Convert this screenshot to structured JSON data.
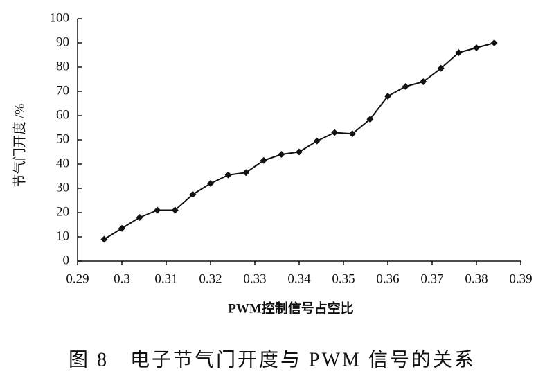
{
  "chart_data": {
    "type": "line",
    "caption": "图 8　电子节气门开度与 PWM 信号的关系",
    "xlabel": "PWM控制信号占空比",
    "ylabel": "节气门开度 /%",
    "x": [
      0.296,
      0.3,
      0.304,
      0.308,
      0.312,
      0.316,
      0.32,
      0.324,
      0.328,
      0.332,
      0.336,
      0.34,
      0.344,
      0.348,
      0.352,
      0.356,
      0.36,
      0.364,
      0.368,
      0.372,
      0.376,
      0.38,
      0.384
    ],
    "series": [
      {
        "color": "#111111",
        "values": [
          9,
          13.5,
          18,
          21,
          21,
          27.5,
          32,
          35.5,
          36.5,
          41.5,
          44,
          45,
          49.5,
          53,
          52.5,
          58.5,
          68,
          72,
          74,
          79.5,
          86,
          88,
          90
        ]
      }
    ],
    "xlim": [
      0.29,
      0.39
    ],
    "xticks": [
      0.29,
      0.3,
      0.31,
      0.32,
      0.33,
      0.34,
      0.35,
      0.36,
      0.37,
      0.38,
      0.39
    ],
    "ylim": [
      0,
      100
    ],
    "yticks": [
      0,
      10,
      20,
      30,
      40,
      50,
      60,
      70,
      80,
      90,
      100
    ]
  }
}
